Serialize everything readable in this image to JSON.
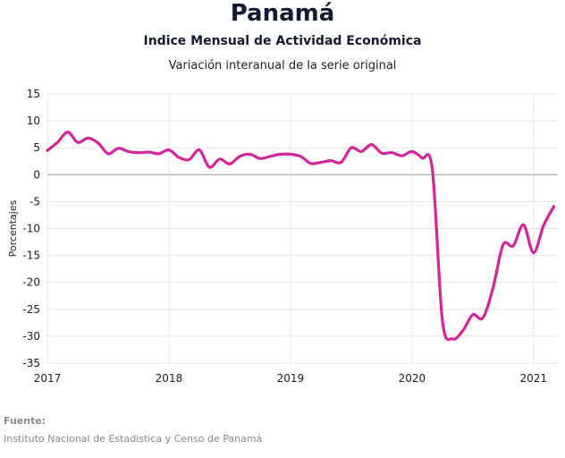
{
  "chart_data": {
    "type": "line",
    "title": "Panamá",
    "subtitle": "Indice Mensual de  Actividad Económica",
    "subtitle2": "Variación interanual de la serie original",
    "ylabel": "Porcentajes",
    "xlabel": "",
    "ylim": [
      -35,
      15
    ],
    "yticks": [
      15,
      10,
      5,
      0,
      -5,
      -10,
      -15,
      -20,
      -25,
      -30,
      -35
    ],
    "xlim": [
      2017.0,
      2021.2
    ],
    "xticks": [
      "2017",
      "2018",
      "2019",
      "2020",
      "2021"
    ],
    "grid": true,
    "line_color": "#d6259a",
    "series": [
      {
        "name": "",
        "x": [
          2017.0,
          2017.083,
          2017.167,
          2017.25,
          2017.333,
          2017.417,
          2017.5,
          2017.583,
          2017.667,
          2017.75,
          2017.833,
          2017.917,
          2018.0,
          2018.083,
          2018.167,
          2018.25,
          2018.333,
          2018.417,
          2018.5,
          2018.583,
          2018.667,
          2018.75,
          2018.833,
          2018.917,
          2019.0,
          2019.083,
          2019.167,
          2019.25,
          2019.333,
          2019.417,
          2019.5,
          2019.583,
          2019.667,
          2019.75,
          2019.833,
          2019.917,
          2020.0,
          2020.083,
          2020.167,
          2020.25,
          2020.333,
          2020.417,
          2020.5,
          2020.583,
          2020.667,
          2020.75,
          2020.833,
          2020.917,
          2021.0,
          2021.083,
          2021.167
        ],
        "y": [
          4.5,
          6.0,
          7.9,
          6.0,
          6.8,
          5.9,
          3.9,
          4.9,
          4.3,
          4.1,
          4.2,
          3.9,
          4.6,
          3.2,
          2.8,
          4.6,
          1.4,
          2.9,
          2.0,
          3.4,
          3.8,
          3.0,
          3.4,
          3.8,
          3.8,
          3.4,
          2.1,
          2.3,
          2.6,
          2.3,
          5.0,
          4.3,
          5.6,
          4.0,
          4.1,
          3.5,
          4.3,
          3.1,
          1.0,
          -27.0,
          -30.5,
          -29.0,
          -26.0,
          -26.6,
          -21.0,
          -13.0,
          -13.2,
          -9.3,
          -14.5,
          -9.4,
          -5.9
        ]
      }
    ],
    "source_label": "Fuente:",
    "source_text": "Instituto Nacional de Estadística y Censo de Panamá"
  }
}
